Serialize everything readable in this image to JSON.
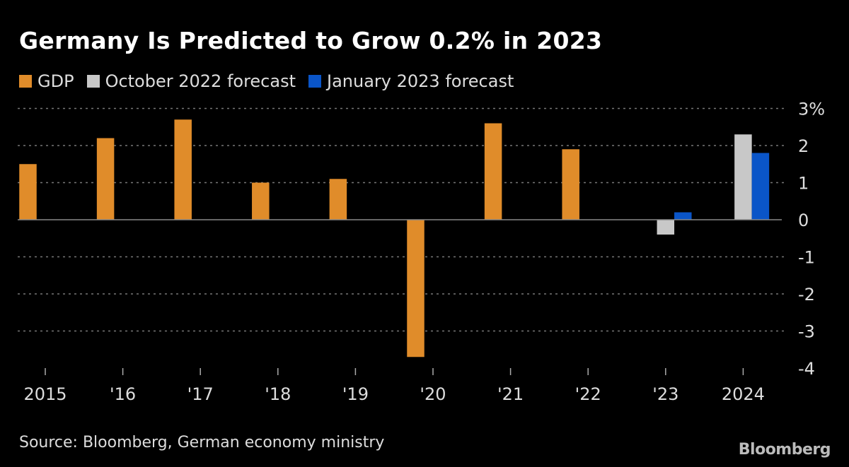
{
  "chart_data": {
    "type": "bar",
    "title": "Germany Is Predicted to Grow 0.2% in 2023",
    "categories": [
      "2015",
      "'16",
      "'17",
      "'18",
      "'19",
      "'20",
      "'21",
      "'22",
      "'23",
      "2024"
    ],
    "series": [
      {
        "name": "GDP",
        "color": "#e08c2a",
        "values": [
          1.5,
          2.2,
          2.7,
          1.0,
          1.1,
          -3.7,
          2.6,
          1.9,
          null,
          null
        ]
      },
      {
        "name": "October 2022 forecast",
        "color": "#c8c8c8",
        "values": [
          null,
          null,
          null,
          null,
          null,
          null,
          null,
          null,
          -0.4,
          2.3
        ]
      },
      {
        "name": "January 2023 forecast",
        "color": "#0a55c8",
        "values": [
          null,
          null,
          null,
          null,
          null,
          null,
          null,
          null,
          0.2,
          1.8
        ]
      }
    ],
    "yticks": [
      "3%",
      "2",
      "1",
      "0",
      "-1",
      "-2",
      "-3",
      "-4"
    ],
    "ylim": [
      -4,
      3
    ],
    "y_axis_position": "right",
    "grid": true,
    "legend_position": "top-left",
    "source": "Source: Bloomberg, German economy ministry",
    "logo": "Bloomberg"
  }
}
